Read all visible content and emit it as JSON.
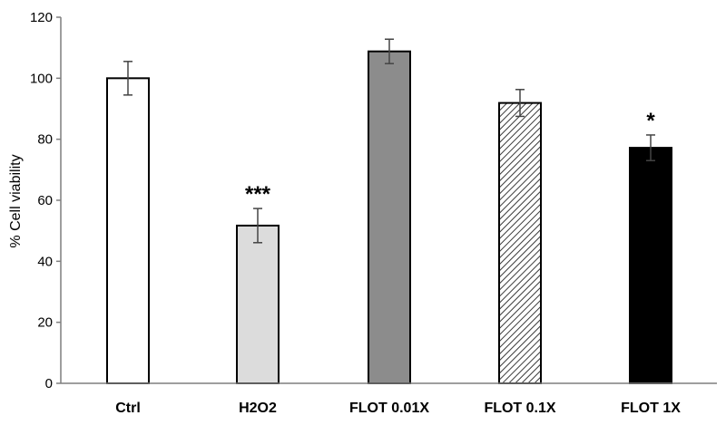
{
  "chart_data": {
    "type": "bar",
    "title": "",
    "xlabel": "",
    "ylabel": "% Cell viability",
    "ylim": [
      0,
      120
    ],
    "yticks": [
      0,
      20,
      40,
      60,
      80,
      100,
      120
    ],
    "yticks_text": [
      "0",
      "20",
      "40",
      "60",
      "80",
      "100",
      "120"
    ],
    "grid": false,
    "legend": "none",
    "categories": [
      "Ctrl",
      "H2O2",
      "FLOT 0.01X",
      "FLOT 0.1X",
      "FLOT 1X"
    ],
    "values": [
      100,
      51.7,
      108.8,
      91.9,
      77.2
    ],
    "errors": [
      5.5,
      5.6,
      4.0,
      4.4,
      4.2
    ],
    "significance": [
      "",
      "***",
      "",
      "",
      "*"
    ],
    "fills": [
      "#ffffff",
      "#dcdcdc",
      "#8c8c8c",
      "hatch",
      "#000000"
    ]
  }
}
